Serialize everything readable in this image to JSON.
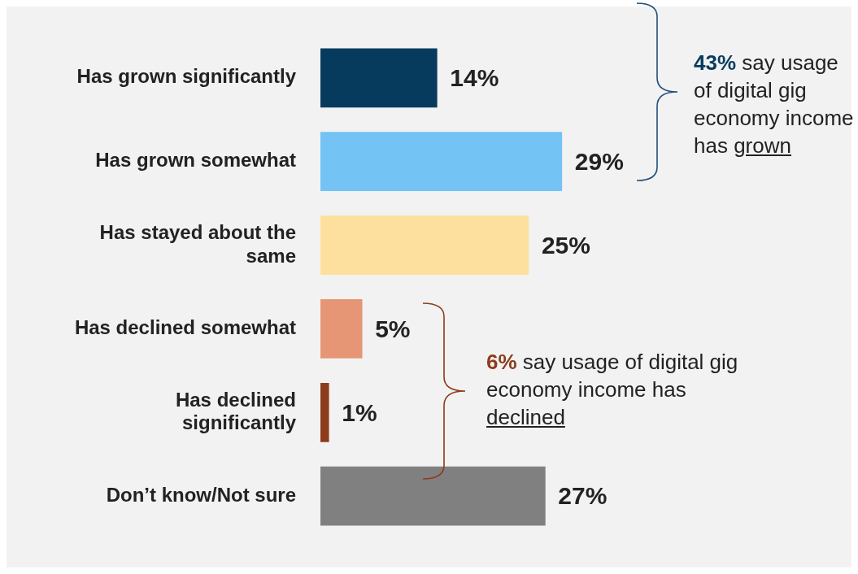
{
  "chart_data": {
    "type": "bar",
    "orientation": "horizontal",
    "categories": [
      "Has grown significantly",
      "Has grown somewhat",
      "Has stayed about the same",
      "Has declined somewhat",
      "Has declined significantly",
      "Don’t know/Not sure"
    ],
    "values": [
      14,
      29,
      25,
      5,
      1,
      27
    ],
    "colors": [
      "#073b5e",
      "#73c3f5",
      "#fde09d",
      "#e69675",
      "#8c3b1b",
      "#808080"
    ],
    "value_labels": [
      "14%",
      "29%",
      "25%",
      "5%",
      "1%",
      "27%"
    ],
    "annotations": [
      "43% say usage of digital gig economy income has grown",
      "6% say usage of digital gig economy income has declined"
    ],
    "legend": false
  }
}
